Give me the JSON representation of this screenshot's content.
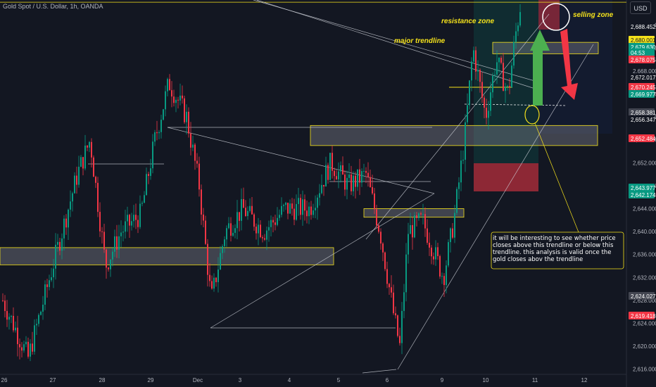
{
  "header": {
    "symbol_title": "Gold Spot / U.S. Dollar, 1h, OANDA",
    "currency": "USD"
  },
  "chart_data": {
    "type": "candlestick",
    "instrument": "Gold Spot / U.S. Dollar",
    "timeframe": "1h",
    "ylim": [
      2613,
      2695
    ],
    "y_ticks": [
      2616,
      2620,
      2624,
      2628,
      2632,
      2636,
      2640,
      2644,
      2648,
      2652,
      2656,
      2660,
      2664,
      2668,
      2672,
      2676,
      2680,
      2684,
      2688
    ],
    "x_tick_labels": [
      "26",
      "27",
      "28",
      "29",
      "Dec",
      "3",
      "4",
      "5",
      "6",
      "9",
      "10",
      "11",
      "12"
    ],
    "price_labels": [
      {
        "value": "2,688.452",
        "color": "#131722"
      },
      {
        "value": "2,680.001",
        "color": "#f5e21b"
      },
      {
        "value": "2,679.630",
        "color": "#089981"
      },
      {
        "value": "04:53",
        "color": "#089981"
      },
      {
        "value": "2,678.075",
        "color": "#f23645"
      },
      {
        "value": "2,672.017",
        "color": "#131722"
      },
      {
        "value": "2,670.245",
        "color": "#f23645"
      },
      {
        "value": "2,669.977",
        "color": "#089981"
      },
      {
        "value": "2,658.381",
        "color": "#434651"
      },
      {
        "value": "2,656.347",
        "color": "#131722"
      },
      {
        "value": "2,652.484",
        "color": "#f23645"
      },
      {
        "value": "2,643.977",
        "color": "#089981"
      },
      {
        "value": "2,642.174",
        "color": "#089981"
      },
      {
        "value": "2,624.027",
        "color": "#434651"
      },
      {
        "value": "2,619.418",
        "color": "#f23645"
      }
    ],
    "zones": [
      {
        "name": "resistance zone",
        "y_range": [
          2688.4,
          2693.5
        ]
      },
      {
        "name": "selling zone",
        "y_range": [
          2671.0,
          2673.0
        ]
      },
      {
        "y_range": [
          2655.0,
          2658.5
        ]
      },
      {
        "y_range": [
          2642.5,
          2644.0
        ]
      },
      {
        "y_range": [
          2634.2,
          2637.2
        ]
      }
    ],
    "annotations": {
      "resistance": "resistance zone",
      "trendline": "major trendline",
      "selling": "selling zone",
      "note": "it will be interesting to see whether price closes above this trendline or below this trendline. this analysis is valid once the gold closes abov the trendline"
    },
    "colors": {
      "up": "#089981",
      "down": "#f23645",
      "zone": "#f5e21b",
      "arrow_up": "#4caf50",
      "arrow_down": "#f23645"
    }
  }
}
